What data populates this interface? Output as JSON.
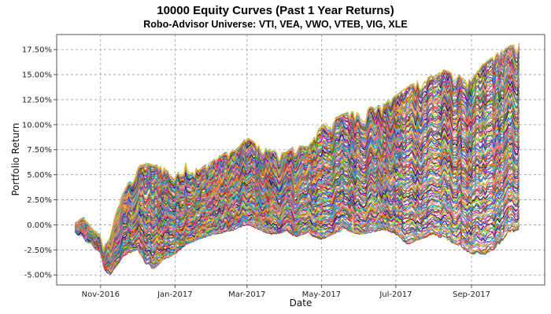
{
  "chart_data": {
    "type": "line",
    "title": "10000 Equity Curves (Past 1 Year Returns)",
    "subtitle": "Robo-Advisor Universe: VTI, VEA, VWO, VTEB, VIG, XLE",
    "xlabel": "Date",
    "ylabel": "Portfolio Return",
    "xlim": [
      "2016-09-26",
      "2017-10-31"
    ],
    "ylim": [
      -6.0,
      19.0
    ],
    "grid": true,
    "legend": "none",
    "x_ticks": [
      "2016-11-01",
      "2017-01-01",
      "2017-03-01",
      "2017-05-01",
      "2017-07-01",
      "2017-09-01"
    ],
    "x_tick_labels": [
      "Nov-2016",
      "Jan-2017",
      "Mar-2017",
      "May-2017",
      "Jul-2017",
      "Sep-2017"
    ],
    "y_ticks": [
      -5.0,
      -2.5,
      0.0,
      2.5,
      5.0,
      7.5,
      10.0,
      12.5,
      15.0,
      17.5
    ],
    "y_tick_labels": [
      "-5.00%",
      "-2.50%",
      "0.00%",
      "2.50%",
      "5.00%",
      "7.50%",
      "10.00%",
      "12.50%",
      "15.00%",
      "17.50%"
    ],
    "x_start": "2016-10-11",
    "x_end": "2017-10-10",
    "envelope_upper": {
      "x": [
        "2016-10-11",
        "2016-10-18",
        "2016-10-25",
        "2016-11-01",
        "2016-11-04",
        "2016-11-08",
        "2016-11-15",
        "2016-11-22",
        "2016-12-01",
        "2016-12-08",
        "2016-12-15",
        "2016-12-22",
        "2017-01-01",
        "2017-01-10",
        "2017-01-20",
        "2017-02-01",
        "2017-02-10",
        "2017-02-20",
        "2017-03-01",
        "2017-03-10",
        "2017-03-20",
        "2017-04-01",
        "2017-04-10",
        "2017-04-20",
        "2017-05-01",
        "2017-05-10",
        "2017-05-20",
        "2017-06-01",
        "2017-06-10",
        "2017-06-20",
        "2017-07-01",
        "2017-07-10",
        "2017-07-20",
        "2017-08-01",
        "2017-08-10",
        "2017-08-20",
        "2017-09-01",
        "2017-09-10",
        "2017-09-20",
        "2017-10-01",
        "2017-10-10"
      ],
      "y": [
        0.2,
        0.8,
        -0.4,
        -1.0,
        -2.0,
        -1.5,
        2.0,
        3.8,
        5.8,
        6.2,
        6.0,
        5.9,
        4.8,
        6.5,
        5.5,
        6.5,
        7.2,
        7.5,
        8.8,
        8.0,
        7.5,
        7.2,
        8.0,
        7.8,
        10.0,
        10.5,
        11.2,
        11.5,
        11.8,
        12.0,
        13.0,
        13.8,
        14.5,
        15.0,
        15.5,
        15.0,
        14.5,
        16.0,
        17.0,
        17.8,
        18.2
      ]
    },
    "envelope_lower": {
      "x": [
        "2016-10-11",
        "2016-10-18",
        "2016-10-25",
        "2016-11-01",
        "2016-11-04",
        "2016-11-08",
        "2016-11-15",
        "2016-11-22",
        "2016-12-01",
        "2016-12-08",
        "2016-12-15",
        "2016-12-22",
        "2017-01-01",
        "2017-01-10",
        "2017-01-20",
        "2017-02-01",
        "2017-02-10",
        "2017-02-20",
        "2017-03-01",
        "2017-03-10",
        "2017-03-20",
        "2017-04-01",
        "2017-04-10",
        "2017-04-20",
        "2017-05-01",
        "2017-05-10",
        "2017-05-20",
        "2017-06-01",
        "2017-06-10",
        "2017-06-20",
        "2017-07-01",
        "2017-07-10",
        "2017-07-20",
        "2017-08-01",
        "2017-08-10",
        "2017-08-20",
        "2017-09-01",
        "2017-09-10",
        "2017-09-20",
        "2017-10-01",
        "2017-10-10"
      ],
      "y": [
        -0.8,
        -1.5,
        -2.2,
        -2.8,
        -4.5,
        -5.2,
        -4.0,
        -3.0,
        -2.5,
        -4.0,
        -4.5,
        -3.5,
        -3.0,
        -2.0,
        -1.5,
        -1.0,
        -0.8,
        -0.5,
        0.0,
        -0.5,
        -1.0,
        -0.8,
        -1.2,
        -1.0,
        -1.5,
        -1.0,
        -0.5,
        -1.0,
        -0.8,
        -0.5,
        -1.0,
        -2.0,
        -1.5,
        -1.0,
        -1.5,
        -2.0,
        -3.0,
        -3.2,
        -2.5,
        -1.0,
        -0.5
      ]
    },
    "series_count": 10000,
    "series_colors": [
      "#1f3fb4",
      "#d62728",
      "#2ca02c",
      "#ff7f0e",
      "#9467bd",
      "#8c564b",
      "#e377c2",
      "#17becf",
      "#bcbd22",
      "#ffbb33",
      "#ff5fa2",
      "#6a5acd",
      "#00a6d6",
      "#b22222",
      "#20b2aa",
      "#ffd700",
      "#8b008b",
      "#4169e1",
      "#f4a460",
      "#2e8b57",
      "#c71585",
      "#1e90ff",
      "#daa520",
      "#7cfc00",
      "#ff4500",
      "#00008b",
      "#ff69b4",
      "#556b2f",
      "#ffa07a",
      "#4682b4"
    ]
  }
}
